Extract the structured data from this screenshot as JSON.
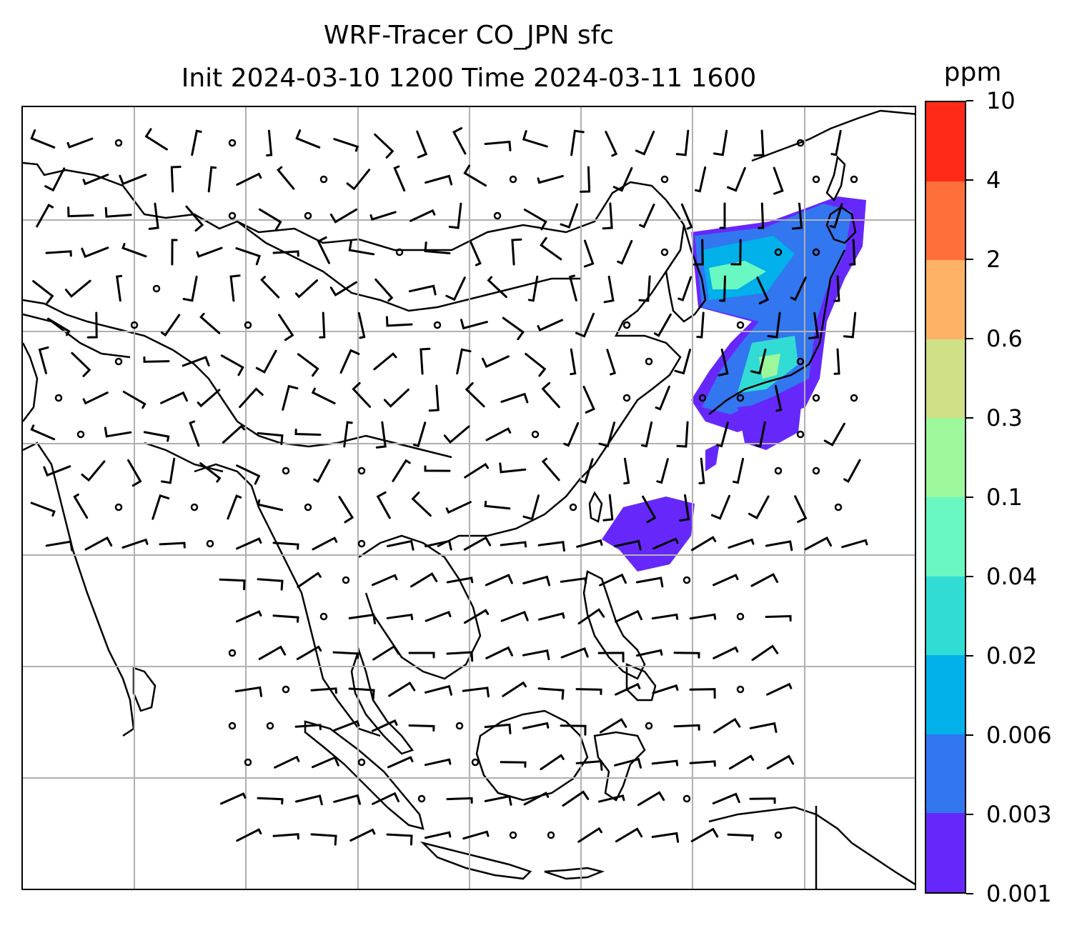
{
  "title": {
    "line1": "WRF-Tracer CO_JPN sfc",
    "line2": "Init 2024-03-10 1200 Time 2024-03-11 1600"
  },
  "colorbar": {
    "unit": "ppm",
    "levels": [
      "0.001",
      "0.003",
      "0.006",
      "0.02",
      "0.04",
      "0.1",
      "0.3",
      "0.6",
      "2",
      "4",
      "10"
    ],
    "colors": [
      "#6628fa",
      "#3276f0",
      "#02b0ea",
      "#31dcd4",
      "#6af8c2",
      "#9df89b",
      "#cfe086",
      "#fdb266",
      "#ff6f3a",
      "#ff2a17"
    ]
  },
  "map": {
    "gridline_color": "#b0b0b0",
    "coastline_color": "#000000",
    "wind_barbs_shown": true
  }
}
